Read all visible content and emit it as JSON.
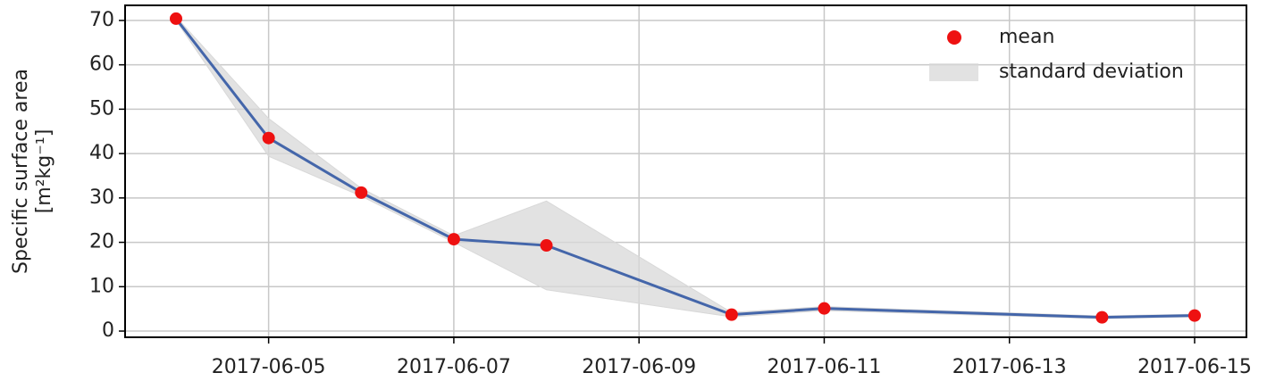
{
  "chart_data": {
    "type": "line",
    "ylabel": [
      "Specific surface area",
      "[m²kg⁻¹]"
    ],
    "x": [
      "2017-06-04",
      "2017-06-05",
      "2017-06-06",
      "2017-06-07",
      "2017-06-08",
      "2017-06-10",
      "2017-06-11",
      "2017-06-14",
      "2017-06-15"
    ],
    "series": [
      {
        "name": "mean",
        "color": "#ee1111",
        "line_color": "#4466aa",
        "values": [
          70.4,
          43.5,
          31.2,
          20.7,
          19.3,
          3.7,
          5.1,
          3.1,
          3.5
        ]
      },
      {
        "name": "standard deviation",
        "color": "#d8d8d8",
        "upper": [
          70.8,
          47.9,
          32.2,
          21.5,
          29.3,
          4.2,
          5.5,
          3.4,
          3.8
        ],
        "lower": [
          70.0,
          39.4,
          30.4,
          20.0,
          9.3,
          3.2,
          4.6,
          2.8,
          3.2
        ]
      }
    ],
    "xlim": [
      "2017-06-03T10:48",
      "2017-06-15T13:26"
    ],
    "xticks": [
      "2017-06-05",
      "2017-06-07",
      "2017-06-09",
      "2017-06-11",
      "2017-06-13",
      "2017-06-15"
    ],
    "ylim": [
      -1.4,
      73.4
    ],
    "yticks": [
      0,
      10,
      20,
      30,
      40,
      50,
      60,
      70
    ],
    "grid": true,
    "legend": "upper right"
  }
}
